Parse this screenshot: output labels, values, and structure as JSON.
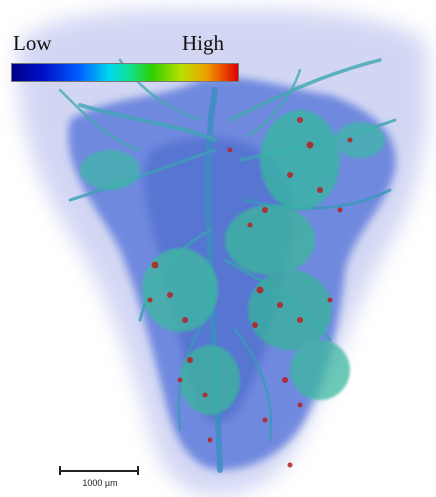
{
  "colorbar": {
    "low_label": "Low",
    "high_label": "High",
    "colors": [
      "#00008b",
      "#0060ff",
      "#00d8f0",
      "#30d000",
      "#f0a000",
      "#e00000"
    ]
  },
  "scale_bar": {
    "label": "1000 µm"
  },
  "image": {
    "subject": "3D volume rendering of branching tissue structure with intensity color mapping",
    "accent_colors": {
      "haze": "#8c96dc",
      "network": "#2e6fd0",
      "mid": "#36b8a8",
      "high": "#b82020"
    }
  }
}
